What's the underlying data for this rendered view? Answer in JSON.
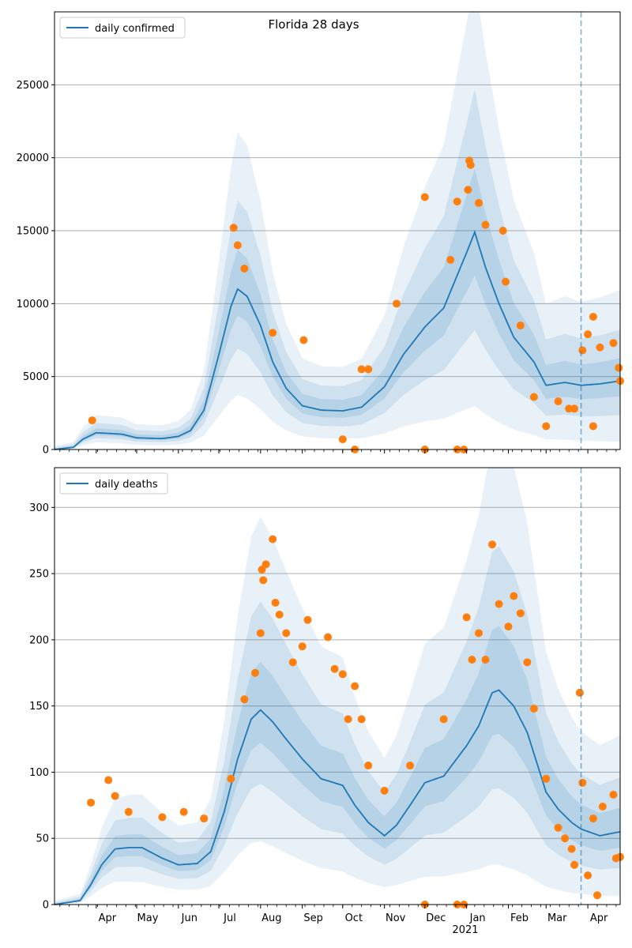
{
  "figure": {
    "title": "Florida 28 days"
  },
  "colors": {
    "band": "#1f77b4",
    "line": "#1f77b4",
    "dots": "#ff7f0e",
    "vline": "#1f77b4",
    "grid": "#b0b0b0"
  },
  "x_axis": {
    "month_ticks": [
      {
        "date": "2020-04-01",
        "label": "Apr"
      },
      {
        "date": "2020-05-01",
        "label": "May"
      },
      {
        "date": "2020-06-01",
        "label": "Jun"
      },
      {
        "date": "2020-07-01",
        "label": "Jul"
      },
      {
        "date": "2020-08-01",
        "label": "Aug"
      },
      {
        "date": "2020-09-01",
        "label": "Sep"
      },
      {
        "date": "2020-10-01",
        "label": "Oct"
      },
      {
        "date": "2020-11-01",
        "label": "Nov"
      },
      {
        "date": "2020-12-01",
        "label": "Dec"
      },
      {
        "date": "2021-01-01",
        "label": "Jan"
      },
      {
        "date": "2021-02-01",
        "label": "Feb"
      },
      {
        "date": "2021-03-01",
        "label": "Mar"
      },
      {
        "date": "2021-04-01",
        "label": "Apr"
      }
    ],
    "year_label": "2021"
  },
  "chart_data": [
    {
      "type": "line",
      "panel": "top",
      "legend": {
        "label": "daily confirmed",
        "position": "top-left"
      },
      "xlim": [
        "2020-03-01",
        "2021-04-25"
      ],
      "ylim": [
        0,
        30000
      ],
      "yticks": [
        0,
        5000,
        10000,
        15000,
        20000,
        25000
      ],
      "grid": "y",
      "forecast_marker_date": "2021-03-27",
      "line_points": [
        [
          "2020-03-01",
          0
        ],
        [
          "2020-03-15",
          150
        ],
        [
          "2020-03-22",
          700
        ],
        [
          "2020-04-01",
          1150
        ],
        [
          "2020-04-20",
          1050
        ],
        [
          "2020-05-01",
          800
        ],
        [
          "2020-05-20",
          750
        ],
        [
          "2020-06-01",
          900
        ],
        [
          "2020-06-10",
          1300
        ],
        [
          "2020-06-20",
          2700
        ],
        [
          "2020-07-01",
          6500
        ],
        [
          "2020-07-10",
          9800
        ],
        [
          "2020-07-15",
          11000
        ],
        [
          "2020-07-22",
          10500
        ],
        [
          "2020-08-01",
          8500
        ],
        [
          "2020-08-10",
          6000
        ],
        [
          "2020-08-20",
          4200
        ],
        [
          "2020-09-01",
          3000
        ],
        [
          "2020-09-15",
          2700
        ],
        [
          "2020-10-01",
          2650
        ],
        [
          "2020-10-15",
          2900
        ],
        [
          "2020-11-01",
          4300
        ],
        [
          "2020-11-15",
          6500
        ],
        [
          "2020-12-01",
          8400
        ],
        [
          "2020-12-15",
          9700
        ],
        [
          "2021-01-01",
          13500
        ],
        [
          "2021-01-07",
          14900
        ],
        [
          "2021-01-15",
          12500
        ],
        [
          "2021-01-25",
          10000
        ],
        [
          "2021-02-05",
          7700
        ],
        [
          "2021-02-20",
          6000
        ],
        [
          "2021-03-01",
          4400
        ],
        [
          "2021-03-15",
          4600
        ],
        [
          "2021-03-27",
          4400
        ],
        [
          "2021-04-10",
          4500
        ],
        [
          "2021-04-25",
          4700
        ]
      ],
      "band_scale": {
        "inner": 0.2,
        "mid": 0.45,
        "outer": 0.8
      },
      "scatter_points": [
        [
          "2020-03-29",
          2000
        ],
        [
          "2020-07-12",
          15200
        ],
        [
          "2020-07-15",
          14000
        ],
        [
          "2020-07-20",
          12400
        ],
        [
          "2020-08-10",
          8000
        ],
        [
          "2020-09-02",
          7500
        ],
        [
          "2020-10-01",
          700
        ],
        [
          "2020-10-10",
          0
        ],
        [
          "2020-10-15",
          5500
        ],
        [
          "2020-10-20",
          5500
        ],
        [
          "2020-11-10",
          10000
        ],
        [
          "2020-12-01",
          17300
        ],
        [
          "2020-12-01",
          0
        ],
        [
          "2020-12-20",
          13000
        ],
        [
          "2020-12-25",
          17000
        ],
        [
          "2020-12-25",
          0
        ],
        [
          "2020-12-30",
          0
        ],
        [
          "2021-01-02",
          17800
        ],
        [
          "2021-01-03",
          19800
        ],
        [
          "2021-01-04",
          19500
        ],
        [
          "2021-01-10",
          16900
        ],
        [
          "2021-01-15",
          15400
        ],
        [
          "2021-01-28",
          15000
        ],
        [
          "2021-01-30",
          11500
        ],
        [
          "2021-02-10",
          8500
        ],
        [
          "2021-02-20",
          3600
        ],
        [
          "2021-03-01",
          1600
        ],
        [
          "2021-03-10",
          3300
        ],
        [
          "2021-03-18",
          2800
        ],
        [
          "2021-03-22",
          2800
        ],
        [
          "2021-03-28",
          6800
        ],
        [
          "2021-04-01",
          7900
        ],
        [
          "2021-04-05",
          9100
        ],
        [
          "2021-04-05",
          1600
        ],
        [
          "2021-04-10",
          7000
        ],
        [
          "2021-04-20",
          7300
        ],
        [
          "2021-04-24",
          5600
        ],
        [
          "2021-04-25",
          4700
        ]
      ]
    },
    {
      "type": "line",
      "panel": "bottom",
      "legend": {
        "label": "daily deaths",
        "position": "top-left"
      },
      "xlim": [
        "2020-03-01",
        "2021-04-25"
      ],
      "ylim": [
        0,
        330
      ],
      "yticks": [
        0,
        50,
        100,
        150,
        200,
        250,
        300
      ],
      "grid": "y",
      "forecast_marker_date": "2021-03-27",
      "line_points": [
        [
          "2020-03-01",
          0
        ],
        [
          "2020-03-20",
          3
        ],
        [
          "2020-03-28",
          15
        ],
        [
          "2020-04-05",
          30
        ],
        [
          "2020-04-15",
          42
        ],
        [
          "2020-04-25",
          43
        ],
        [
          "2020-05-05",
          43
        ],
        [
          "2020-05-20",
          35
        ],
        [
          "2020-06-01",
          30
        ],
        [
          "2020-06-15",
          31
        ],
        [
          "2020-06-25",
          40
        ],
        [
          "2020-07-05",
          70
        ],
        [
          "2020-07-15",
          110
        ],
        [
          "2020-07-25",
          140
        ],
        [
          "2020-08-01",
          147
        ],
        [
          "2020-08-10",
          138
        ],
        [
          "2020-08-20",
          125
        ],
        [
          "2020-09-01",
          110
        ],
        [
          "2020-09-15",
          95
        ],
        [
          "2020-10-01",
          90
        ],
        [
          "2020-10-10",
          75
        ],
        [
          "2020-10-20",
          62
        ],
        [
          "2020-11-01",
          52
        ],
        [
          "2020-11-10",
          60
        ],
        [
          "2020-11-20",
          75
        ],
        [
          "2020-12-01",
          92
        ],
        [
          "2020-12-15",
          97
        ],
        [
          "2021-01-01",
          120
        ],
        [
          "2021-01-10",
          135
        ],
        [
          "2021-01-20",
          160
        ],
        [
          "2021-01-25",
          162
        ],
        [
          "2021-02-05",
          150
        ],
        [
          "2021-02-15",
          130
        ],
        [
          "2021-03-01",
          85
        ],
        [
          "2021-03-10",
          72
        ],
        [
          "2021-03-20",
          62
        ],
        [
          "2021-03-27",
          57
        ],
        [
          "2021-04-10",
          52
        ],
        [
          "2021-04-25",
          55
        ]
      ],
      "band_scale": {
        "inner": 0.2,
        "mid": 0.45,
        "outer": 0.8
      },
      "scatter_points": [
        [
          "2020-03-28",
          77
        ],
        [
          "2020-04-10",
          94
        ],
        [
          "2020-04-15",
          82
        ],
        [
          "2020-04-25",
          70
        ],
        [
          "2020-05-20",
          66
        ],
        [
          "2020-06-05",
          70
        ],
        [
          "2020-06-20",
          65
        ],
        [
          "2020-07-10",
          95
        ],
        [
          "2020-07-20",
          155
        ],
        [
          "2020-07-28",
          175
        ],
        [
          "2020-08-01",
          205
        ],
        [
          "2020-08-02",
          253
        ],
        [
          "2020-08-03",
          245
        ],
        [
          "2020-08-05",
          257
        ],
        [
          "2020-08-10",
          276
        ],
        [
          "2020-08-12",
          228
        ],
        [
          "2020-08-15",
          219
        ],
        [
          "2020-08-20",
          205
        ],
        [
          "2020-08-25",
          183
        ],
        [
          "2020-09-01",
          195
        ],
        [
          "2020-09-05",
          215
        ],
        [
          "2020-09-20",
          202
        ],
        [
          "2020-09-25",
          178
        ],
        [
          "2020-10-01",
          174
        ],
        [
          "2020-10-05",
          140
        ],
        [
          "2020-10-10",
          165
        ],
        [
          "2020-10-15",
          140
        ],
        [
          "2020-10-20",
          105
        ],
        [
          "2020-11-01",
          86
        ],
        [
          "2020-11-20",
          105
        ],
        [
          "2020-12-01",
          0
        ],
        [
          "2020-12-15",
          140
        ],
        [
          "2020-12-25",
          0
        ],
        [
          "2020-12-30",
          0
        ],
        [
          "2021-01-01",
          217
        ],
        [
          "2021-01-05",
          185
        ],
        [
          "2021-01-10",
          205
        ],
        [
          "2021-01-15",
          185
        ],
        [
          "2021-01-20",
          272
        ],
        [
          "2021-01-25",
          227
        ],
        [
          "2021-02-01",
          210
        ],
        [
          "2021-02-05",
          233
        ],
        [
          "2021-02-10",
          220
        ],
        [
          "2021-02-15",
          183
        ],
        [
          "2021-02-20",
          148
        ],
        [
          "2021-03-01",
          95
        ],
        [
          "2021-03-10",
          58
        ],
        [
          "2021-03-15",
          50
        ],
        [
          "2021-03-20",
          42
        ],
        [
          "2021-03-22",
          30
        ],
        [
          "2021-03-26",
          160
        ],
        [
          "2021-03-28",
          92
        ],
        [
          "2021-04-01",
          22
        ],
        [
          "2021-04-05",
          65
        ],
        [
          "2021-04-08",
          7
        ],
        [
          "2021-04-12",
          74
        ],
        [
          "2021-04-20",
          83
        ],
        [
          "2021-04-22",
          35
        ],
        [
          "2021-04-25",
          36
        ]
      ]
    }
  ]
}
